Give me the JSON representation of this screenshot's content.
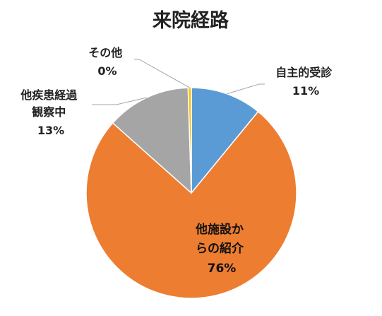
{
  "chart_data": {
    "type": "pie",
    "title": "来院経路",
    "slices": [
      {
        "label_lines": [
          "自主的受診"
        ],
        "percent_label": "11%",
        "value": 11,
        "color": "#5B9BD5"
      },
      {
        "label_lines": [
          "他施設か",
          "らの紹介"
        ],
        "percent_label": "76%",
        "value": 76,
        "color": "#ED7D31"
      },
      {
        "label_lines": [
          "他疾患経過",
          "観察中"
        ],
        "percent_label": "13%",
        "value": 13,
        "color": "#A5A5A5"
      },
      {
        "label_lines": [
          "その他"
        ],
        "percent_label": "0%",
        "value": 0.5,
        "color": "#FFC000"
      }
    ],
    "legend": "none"
  }
}
